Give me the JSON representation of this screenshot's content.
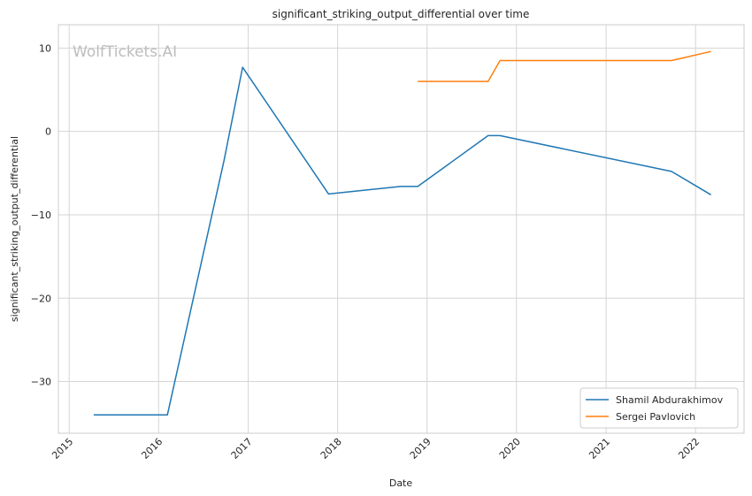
{
  "chart_data": {
    "type": "line",
    "title": "significant_striking_output_differential over time",
    "xlabel": "Date",
    "ylabel": "significant_striking_output_differential",
    "watermark": "WolfTickets.AI",
    "x_range": [
      "2014-11-18",
      "2022-07-18"
    ],
    "ylim": [
      -36.2,
      12.8
    ],
    "x_ticks": [
      "2015",
      "2016",
      "2017",
      "2018",
      "2019",
      "2020",
      "2021",
      "2022"
    ],
    "y_ticks": [
      10,
      0,
      -10,
      -20,
      -30
    ],
    "y_tick_labels": [
      "10",
      "0",
      "−10",
      "−20",
      "−30"
    ],
    "grid": true,
    "legend_position": "lower-right",
    "series": [
      {
        "name": "Shamil Abdurakhimov",
        "color": "#1f77b4",
        "points": [
          [
            "2015-04-11",
            -34.0
          ],
          [
            "2016-02-06",
            -34.0
          ],
          [
            "2016-09-24",
            -3.5
          ],
          [
            "2016-12-09",
            7.7
          ],
          [
            "2017-11-25",
            -7.5
          ],
          [
            "2018-09-15",
            -6.6
          ],
          [
            "2018-11-24",
            -6.6
          ],
          [
            "2019-09-07",
            -0.5
          ],
          [
            "2019-10-26",
            -0.5
          ],
          [
            "2021-09-25",
            -4.8
          ],
          [
            "2022-03-05",
            -7.6
          ]
        ]
      },
      {
        "name": "Sergei Pavlovich",
        "color": "#ff7f0e",
        "points": [
          [
            "2018-11-24",
            6.0
          ],
          [
            "2019-09-07",
            6.0
          ],
          [
            "2019-10-26",
            8.5
          ],
          [
            "2021-09-25",
            8.5
          ],
          [
            "2022-03-05",
            9.6
          ]
        ]
      }
    ]
  }
}
